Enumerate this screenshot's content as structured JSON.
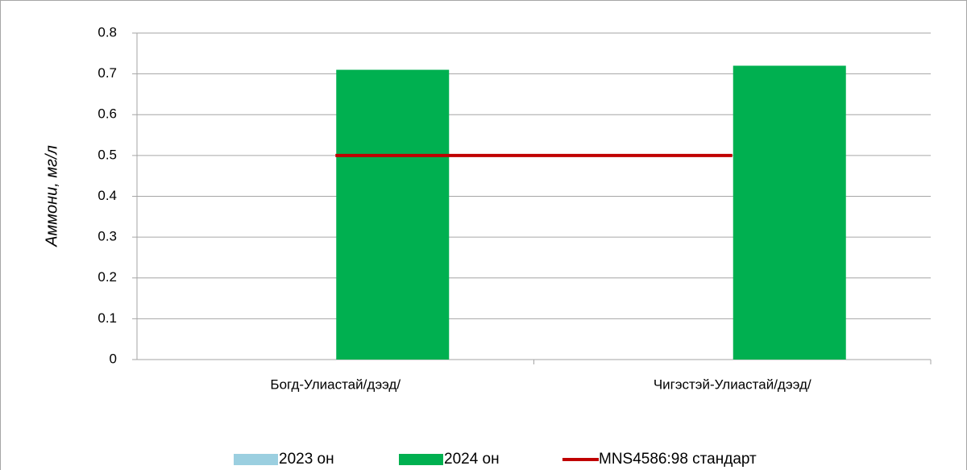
{
  "chart_data": {
    "type": "bar",
    "y_label": "Аммони, мг/л",
    "categories": [
      "Богд-Улиастай/дээд/",
      "Чигэстэй-Улиастай/дээд/"
    ],
    "series": [
      {
        "name": "2023 он",
        "color": "#9bcfe0",
        "type": "bar",
        "values": [
          null,
          null
        ]
      },
      {
        "name": "2024 он",
        "color": "#00b050",
        "type": "bar",
        "values": [
          0.71,
          0.72
        ]
      },
      {
        "name": "MNS4586:98 стандарт",
        "color": "#c00000",
        "type": "line",
        "values": [
          0.5,
          0.5
        ]
      }
    ],
    "ylim": [
      0,
      0.8
    ],
    "yticks": [
      0,
      0.1,
      0.2,
      0.3,
      0.4,
      0.5,
      0.6,
      0.7,
      0.8
    ],
    "grid": true,
    "legend": "bottom"
  }
}
